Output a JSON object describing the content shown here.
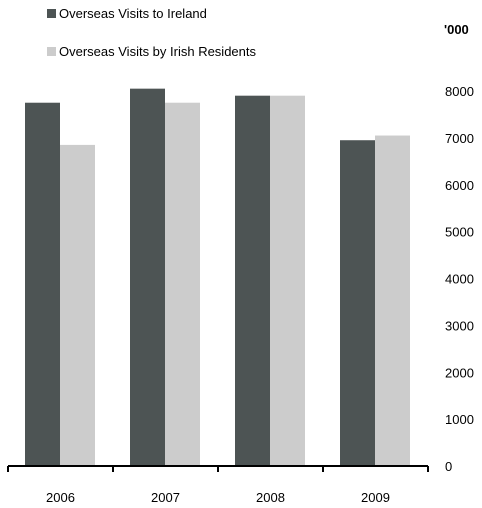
{
  "chart_data": {
    "type": "bar",
    "categories": [
      "2006",
      "2007",
      "2008",
      "2009"
    ],
    "series": [
      {
        "name": "Overseas Visits to Ireland",
        "values": [
          7750,
          8050,
          7900,
          6950
        ],
        "color": "#4d5454"
      },
      {
        "name": "Overseas Visits by Irish Residents",
        "values": [
          6850,
          7750,
          7900,
          7050
        ],
        "color": "#cccccc"
      }
    ],
    "unit_label": "'000",
    "ylim": [
      0,
      8000
    ],
    "yticks": [
      "0",
      "1000",
      "2000",
      "3000",
      "4000",
      "5000",
      "6000",
      "7000",
      "8000"
    ],
    "y_axis_side": "right",
    "legend_position": "top-left",
    "grid": false
  }
}
